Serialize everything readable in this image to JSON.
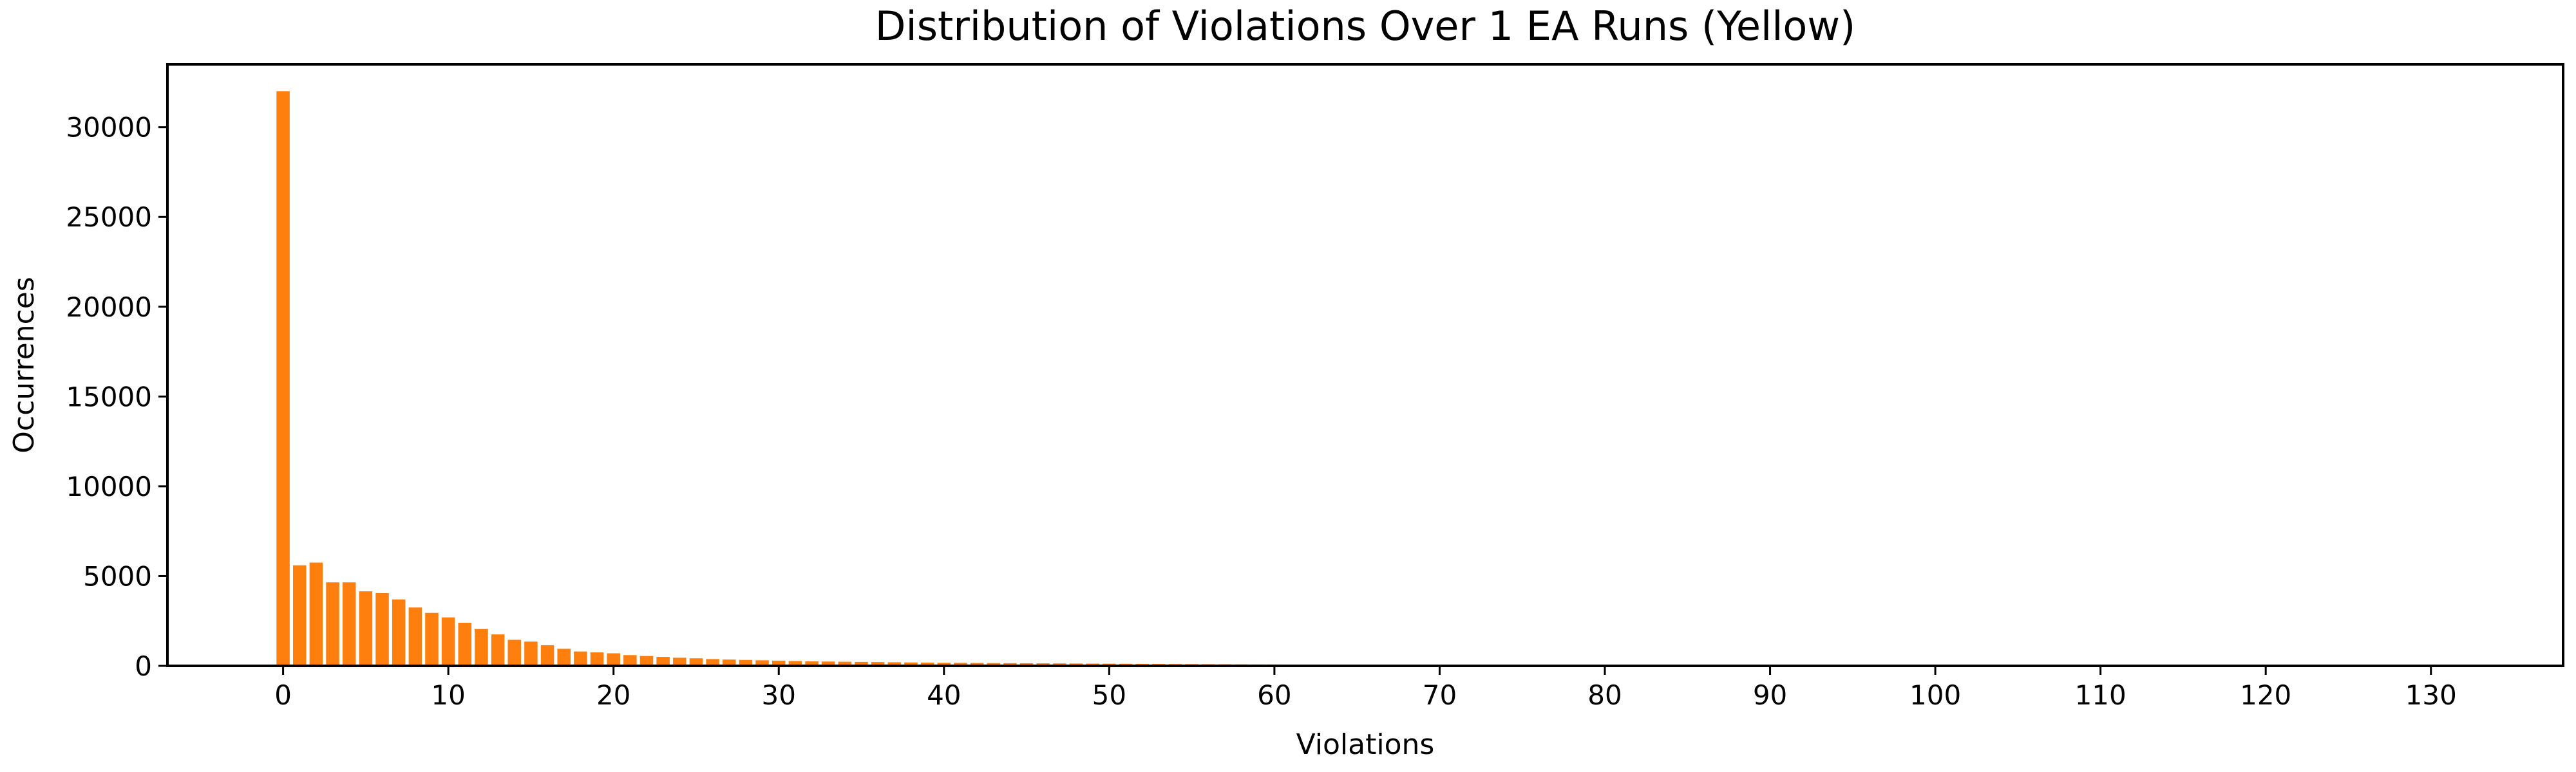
{
  "chart_data": {
    "type": "bar",
    "title": "Distribution of Violations Over 1 EA Runs (Yellow)",
    "xlabel": "Violations",
    "ylabel": "Occurrences",
    "xlim": [
      -7,
      138
    ],
    "ylim": [
      0,
      33500
    ],
    "xticks": [
      0,
      10,
      20,
      30,
      40,
      50,
      60,
      70,
      80,
      90,
      100,
      110,
      120,
      130
    ],
    "yticks": [
      0,
      5000,
      10000,
      15000,
      20000,
      25000,
      30000
    ],
    "grid": false,
    "legend": "none",
    "bar_color": "#ff7f0e",
    "series": [
      {
        "x": [
          0,
          1,
          2,
          3,
          4,
          5,
          6,
          7,
          8,
          9,
          10,
          11,
          12,
          13,
          14,
          15,
          16,
          17,
          18,
          19,
          20,
          21,
          22,
          23,
          24,
          25,
          26,
          27,
          28,
          29,
          30,
          31,
          32,
          33,
          34,
          35,
          36,
          37,
          38,
          39,
          40,
          41,
          42,
          43,
          44,
          45,
          46,
          47,
          48,
          49,
          50,
          51,
          52,
          53,
          54,
          55,
          56,
          57,
          58,
          59,
          60,
          61,
          62,
          63,
          64,
          65,
          66,
          67,
          68,
          69,
          70,
          71,
          72,
          73,
          74,
          75,
          76,
          77,
          78,
          79,
          80,
          81,
          82,
          83,
          84,
          85,
          86,
          87,
          88,
          89,
          90,
          91,
          92,
          93,
          94,
          95,
          96,
          97,
          98,
          99,
          100,
          101,
          102,
          103,
          104,
          105,
          106,
          107,
          108,
          109,
          110,
          111,
          112,
          113,
          114,
          115,
          116,
          117,
          118,
          119,
          120,
          121,
          122,
          123,
          124,
          125,
          126,
          127,
          128,
          129,
          130,
          131,
          132
        ],
        "values": [
          32000,
          5600,
          5750,
          4650,
          4650,
          4150,
          4050,
          3700,
          3250,
          2950,
          2700,
          2400,
          2050,
          1750,
          1450,
          1350,
          1150,
          950,
          800,
          750,
          700,
          600,
          550,
          500,
          450,
          420,
          380,
          350,
          330,
          310,
          290,
          270,
          250,
          240,
          230,
          220,
          210,
          200,
          190,
          180,
          170,
          165,
          160,
          155,
          150,
          145,
          140,
          135,
          130,
          125,
          120,
          115,
          110,
          105,
          100,
          95,
          90,
          85,
          80,
          75,
          75,
          70,
          65,
          60,
          50,
          45,
          40,
          35,
          30,
          28,
          25,
          22,
          20,
          18,
          16,
          15,
          14,
          13,
          12,
          11,
          10,
          9,
          8,
          7,
          7,
          6,
          6,
          5,
          5,
          4,
          4,
          3,
          3,
          3,
          2,
          2,
          2,
          2,
          2,
          1,
          1,
          1,
          1,
          1,
          1,
          1,
          1,
          1,
          1,
          1,
          1,
          1,
          1,
          1,
          1,
          1,
          1,
          1,
          1,
          1,
          1,
          1,
          1,
          1,
          1,
          1,
          1,
          1,
          1,
          1,
          1,
          1,
          1
        ]
      }
    ]
  }
}
